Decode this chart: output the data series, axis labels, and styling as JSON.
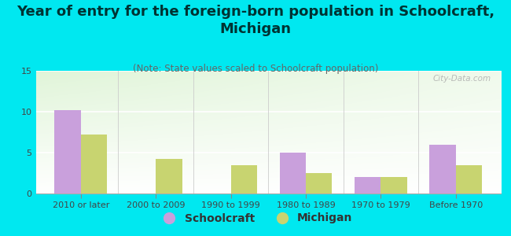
{
  "title": "Year of entry for the foreign-born population in Schoolcraft,\nMichigan",
  "subtitle": "(Note: State values scaled to Schoolcraft population)",
  "categories": [
    "2010 or later",
    "2000 to 2009",
    "1990 to 1999",
    "1980 to 1989",
    "1970 to 1979",
    "Before 1970"
  ],
  "schoolcraft_values": [
    10.2,
    0,
    0,
    5.0,
    2.0,
    6.0
  ],
  "michigan_values": [
    7.2,
    4.2,
    3.5,
    2.5,
    2.0,
    3.5
  ],
  "schoolcraft_color": "#c9a0dc",
  "michigan_color": "#c8d470",
  "background_color": "#00e8f0",
  "ylim": [
    0,
    15
  ],
  "yticks": [
    0,
    5,
    10,
    15
  ],
  "bar_width": 0.35,
  "title_fontsize": 13,
  "subtitle_fontsize": 8.5,
  "legend_fontsize": 10,
  "tick_fontsize": 8,
  "watermark": "City-Data.com"
}
